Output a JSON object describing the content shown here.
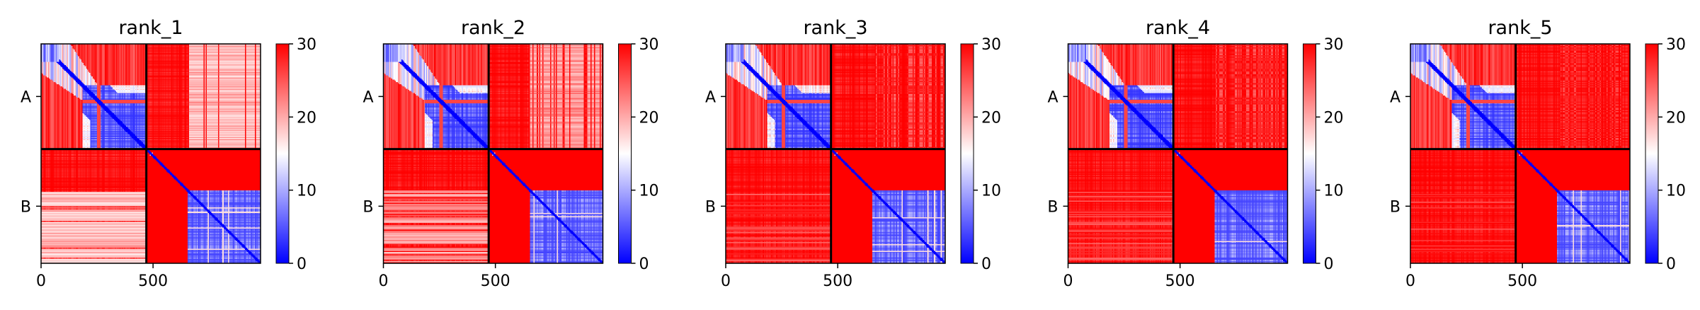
{
  "chart_data": [
    {
      "type": "heatmap",
      "title": "rank_1",
      "x_ticks": [
        0,
        500
      ],
      "x_range": [
        0,
        980
      ],
      "chain_labels": [
        "A",
        "B"
      ],
      "chain_lengths": [
        470,
        510
      ],
      "colorbar": {
        "min": 0,
        "max": 30,
        "ticks": [
          0,
          10,
          20,
          30
        ],
        "colors": [
          "#0000ff",
          "#ffffff",
          "#ff0000"
        ]
      },
      "inter_chain_white_band": [
        650,
        980,
        0.85
      ]
    },
    {
      "type": "heatmap",
      "title": "rank_2",
      "x_ticks": [
        0,
        500
      ],
      "x_range": [
        0,
        980
      ],
      "chain_labels": [
        "A",
        "B"
      ],
      "chain_lengths": [
        470,
        510
      ],
      "colorbar": {
        "min": 0,
        "max": 30,
        "ticks": [
          0,
          10,
          20,
          30
        ],
        "colors": [
          "#0000ff",
          "#ffffff",
          "#ff0000"
        ]
      },
      "inter_chain_white_band": [
        650,
        980,
        0.7
      ]
    },
    {
      "type": "heatmap",
      "title": "rank_3",
      "x_ticks": [
        0,
        500
      ],
      "x_range": [
        0,
        980
      ],
      "chain_labels": [
        "A",
        "B"
      ],
      "chain_lengths": [
        470,
        510
      ],
      "colorbar": {
        "min": 0,
        "max": 30,
        "ticks": [
          0,
          10,
          20,
          30
        ],
        "colors": [
          "#0000ff",
          "#ffffff",
          "#ff0000"
        ]
      },
      "inter_chain_white_band": [
        650,
        980,
        0.35
      ]
    },
    {
      "type": "heatmap",
      "title": "rank_4",
      "x_ticks": [
        0,
        500
      ],
      "x_range": [
        0,
        980
      ],
      "chain_labels": [
        "A",
        "B"
      ],
      "chain_lengths": [
        470,
        510
      ],
      "colorbar": {
        "min": 0,
        "max": 30,
        "ticks": [
          0,
          10,
          20,
          30
        ],
        "colors": [
          "#0000ff",
          "#ffffff",
          "#ff0000"
        ]
      },
      "inter_chain_white_band": [
        650,
        980,
        0.3
      ]
    },
    {
      "type": "heatmap",
      "title": "rank_5",
      "x_ticks": [
        0,
        500
      ],
      "x_range": [
        0,
        980
      ],
      "chain_labels": [
        "A",
        "B"
      ],
      "chain_lengths": [
        470,
        510
      ],
      "colorbar": {
        "min": 0,
        "max": 30,
        "ticks": [
          0,
          10,
          20,
          30
        ],
        "colors": [
          "#0000ff",
          "#ffffff",
          "#ff0000"
        ]
      },
      "inter_chain_white_band": [
        650,
        980,
        0.25
      ]
    }
  ]
}
